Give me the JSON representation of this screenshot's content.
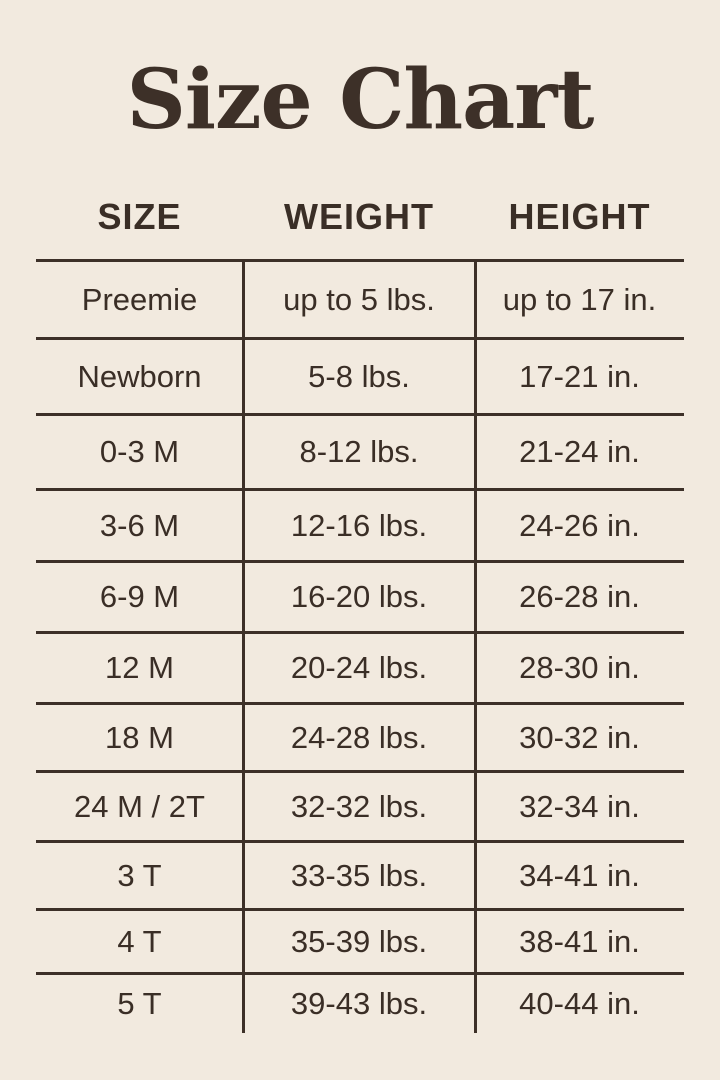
{
  "title": "Size Chart",
  "headers": [
    "SIZE",
    "WEIGHT",
    "HEIGHT"
  ],
  "rows": [
    [
      "Preemie",
      "up to 5 lbs.",
      "up to 17 in."
    ],
    [
      "Newborn",
      "5-8 lbs.",
      "17-21 in."
    ],
    [
      "0-3 M",
      "8-12 lbs.",
      "21-24 in."
    ],
    [
      "3-6 M",
      "12-16 lbs.",
      "24-26 in."
    ],
    [
      "6-9 M",
      "16-20 lbs.",
      "26-28 in."
    ],
    [
      "12 M",
      "20-24 lbs.",
      "28-30 in."
    ],
    [
      "18 M",
      "24-28 lbs.",
      "30-32 in."
    ],
    [
      "24 M / 2T",
      "32-32 lbs.",
      "32-34 in."
    ],
    [
      "3 T",
      "33-35 lbs.",
      "34-41 in."
    ],
    [
      "4 T",
      "35-39 lbs.",
      "38-41 in."
    ],
    [
      "5 T",
      "39-43 lbs.",
      "40-44 in."
    ]
  ],
  "colors": {
    "background": "#f2eadf",
    "text": "#3a2e26",
    "lines": "#3d3028"
  }
}
